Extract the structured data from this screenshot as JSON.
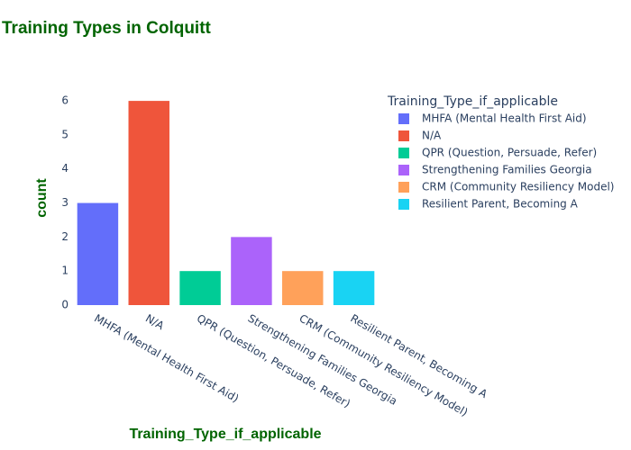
{
  "chart_data": {
    "type": "bar",
    "title": "Training Types in Colquitt",
    "x_label": "Training_Type_if_applicable",
    "y_label": "count",
    "legend_title": "Training_Type_if_applicable",
    "categories": [
      "MHFA (Mental Health First Aid)",
      "N/A",
      "QPR (Question, Persuade, Refer)",
      "Strengthening Families Georgia",
      "CRM (Community Resiliency Model)",
      "Resilient Parent, Becoming A"
    ],
    "values": [
      3,
      6,
      1,
      2,
      1,
      1
    ],
    "colors": [
      "#636efa",
      "#ef553b",
      "#00cc96",
      "#ab63fa",
      "#ffa15a",
      "#19d3f3"
    ],
    "ylim": [
      0,
      6.32
    ],
    "yticks": [
      0,
      1,
      2,
      3,
      4,
      5,
      6
    ],
    "grid": false,
    "legend": "right"
  }
}
